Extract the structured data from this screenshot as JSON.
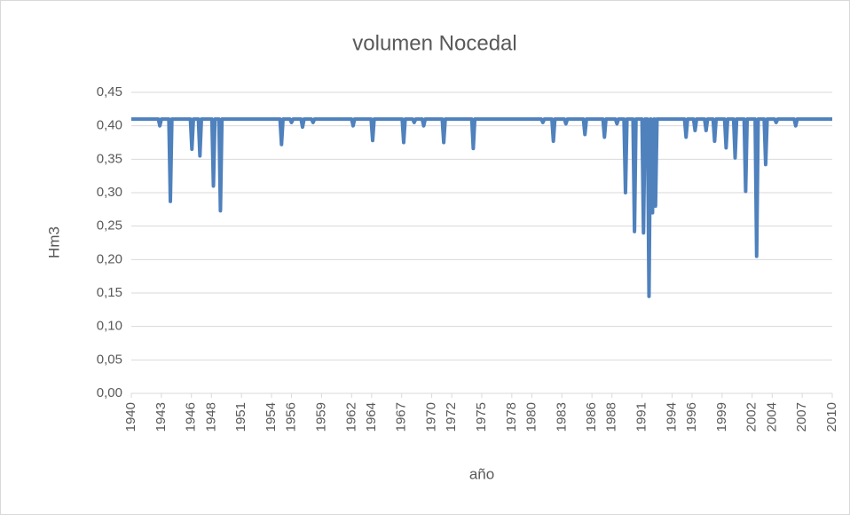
{
  "chart_data": {
    "type": "line",
    "title": "volumen Nocedal",
    "xlabel": "año",
    "ylabel": "Hm3",
    "grid": true,
    "xlim": [
      1940,
      2010
    ],
    "xticks": [
      1940,
      1943,
      1946,
      1948,
      1951,
      1954,
      1956,
      1959,
      1962,
      1964,
      1967,
      1970,
      1972,
      1975,
      1978,
      1980,
      1983,
      1986,
      1988,
      1991,
      1994,
      1996,
      1999,
      2002,
      2004,
      2007,
      2010
    ],
    "ylim": [
      0,
      0.45
    ],
    "yticks": [
      {
        "value": 0,
        "label": "0,00"
      },
      {
        "value": 0.05,
        "label": "0,05"
      },
      {
        "value": 0.1,
        "label": "0,10"
      },
      {
        "value": 0.15,
        "label": "0,15"
      },
      {
        "value": 0.2,
        "label": "0,20"
      },
      {
        "value": 0.25,
        "label": "0,25"
      },
      {
        "value": 0.3,
        "label": "0,30"
      },
      {
        "value": 0.35,
        "label": "0,35"
      },
      {
        "value": 0.4,
        "label": "0,40"
      },
      {
        "value": 0.45,
        "label": "0,45"
      }
    ],
    "x": [
      1940,
      1942.7,
      1942.85,
      1943.0,
      1943.75,
      1943.9,
      1944.05,
      1945.9,
      1946.05,
      1946.2,
      1946.7,
      1946.85,
      1947.0,
      1948.05,
      1948.2,
      1948.35,
      1948.75,
      1948.9,
      1949.05,
      1954.85,
      1955.0,
      1955.15,
      1955.85,
      1956.0,
      1956.15,
      1956.95,
      1957.1,
      1957.25,
      1958.0,
      1958.15,
      1958.3,
      1962.0,
      1962.15,
      1962.3,
      1963.95,
      1964.1,
      1964.25,
      1967.05,
      1967.2,
      1967.35,
      1968.1,
      1968.25,
      1968.4,
      1969.05,
      1969.2,
      1969.35,
      1971.05,
      1971.2,
      1971.35,
      1974.0,
      1974.15,
      1974.3,
      1980.95,
      1981.1,
      1981.25,
      1982.0,
      1982.15,
      1982.3,
      1983.25,
      1983.4,
      1983.55,
      1985.15,
      1985.3,
      1985.45,
      1987.1,
      1987.25,
      1987.4,
      1988.35,
      1988.5,
      1988.65,
      1989.2,
      1989.35,
      1989.5,
      1990.1,
      1990.25,
      1990.4,
      1991.0,
      1991.15,
      1991.3,
      1991.55,
      1991.7,
      1991.85,
      1991.9,
      1992.05,
      1992.2,
      1992.25,
      1992.35,
      1992.5,
      1995.25,
      1995.4,
      1995.55,
      1996.15,
      1996.3,
      1996.45,
      1997.25,
      1997.4,
      1997.55,
      1998.1,
      1998.25,
      1998.4,
      1999.25,
      1999.4,
      1999.55,
      2000.15,
      2000.3,
      2000.45,
      2001.2,
      2001.35,
      2001.5,
      2002.3,
      2002.45,
      2002.6,
      2003.2,
      2003.35,
      2003.5,
      2004.25,
      2004.4,
      2004.55,
      2006.2,
      2006.35,
      2006.5,
      2010
    ],
    "series": [
      {
        "color": "#4f81bd",
        "values": [
          0.41,
          0.41,
          0.4,
          0.41,
          0.41,
          0.287,
          0.41,
          0.41,
          0.365,
          0.41,
          0.41,
          0.355,
          0.41,
          0.41,
          0.31,
          0.41,
          0.41,
          0.273,
          0.41,
          0.41,
          0.372,
          0.41,
          0.41,
          0.405,
          0.41,
          0.41,
          0.398,
          0.41,
          0.41,
          0.405,
          0.41,
          0.41,
          0.4,
          0.41,
          0.41,
          0.378,
          0.41,
          0.41,
          0.375,
          0.41,
          0.41,
          0.405,
          0.41,
          0.41,
          0.4,
          0.41,
          0.41,
          0.375,
          0.41,
          0.41,
          0.366,
          0.41,
          0.41,
          0.405,
          0.41,
          0.41,
          0.377,
          0.41,
          0.41,
          0.403,
          0.41,
          0.41,
          0.387,
          0.41,
          0.41,
          0.383,
          0.41,
          0.41,
          0.403,
          0.41,
          0.41,
          0.3,
          0.41,
          0.41,
          0.242,
          0.41,
          0.41,
          0.24,
          0.41,
          0.41,
          0.145,
          0.41,
          0.41,
          0.27,
          0.41,
          0.41,
          0.28,
          0.41,
          0.41,
          0.383,
          0.41,
          0.41,
          0.393,
          0.41,
          0.41,
          0.393,
          0.41,
          0.41,
          0.377,
          0.41,
          0.41,
          0.367,
          0.41,
          0.41,
          0.352,
          0.41,
          0.41,
          0.302,
          0.41,
          0.41,
          0.205,
          0.41,
          0.41,
          0.342,
          0.41,
          0.41,
          0.405,
          0.41,
          0.41,
          0.4,
          0.41,
          0.41
        ]
      }
    ]
  }
}
